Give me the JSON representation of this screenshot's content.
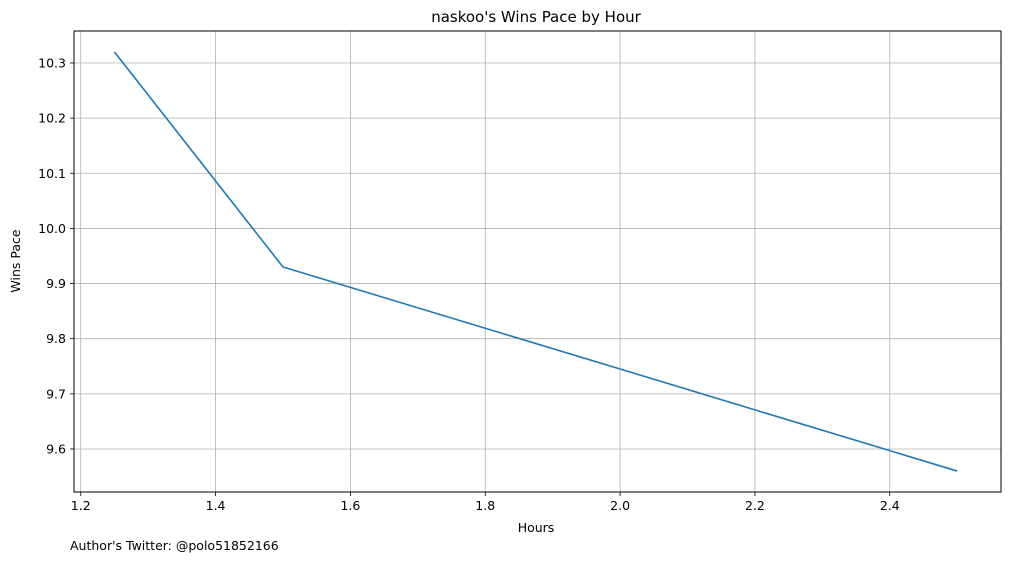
{
  "chart_data": {
    "type": "line",
    "title": "naskoo's Wins Pace by Hour",
    "xlabel": "Hours",
    "ylabel": "Wins Pace",
    "xlim": [
      1.19,
      2.565
    ],
    "ylim": [
      9.522,
      10.358
    ],
    "x_ticks": [
      "1.2",
      "1.4",
      "1.6",
      "1.8",
      "2.0",
      "2.2",
      "2.4"
    ],
    "y_ticks": [
      "9.6",
      "9.7",
      "9.8",
      "9.9",
      "10.0",
      "10.1",
      "10.2",
      "10.3"
    ],
    "grid": true,
    "series": [
      {
        "color": "#1f77b4",
        "x": [
          1.25,
          1.5,
          2.5
        ],
        "y": [
          10.32,
          9.93,
          9.56
        ]
      }
    ]
  },
  "footnote": "Author's Twitter: @polo51852166"
}
